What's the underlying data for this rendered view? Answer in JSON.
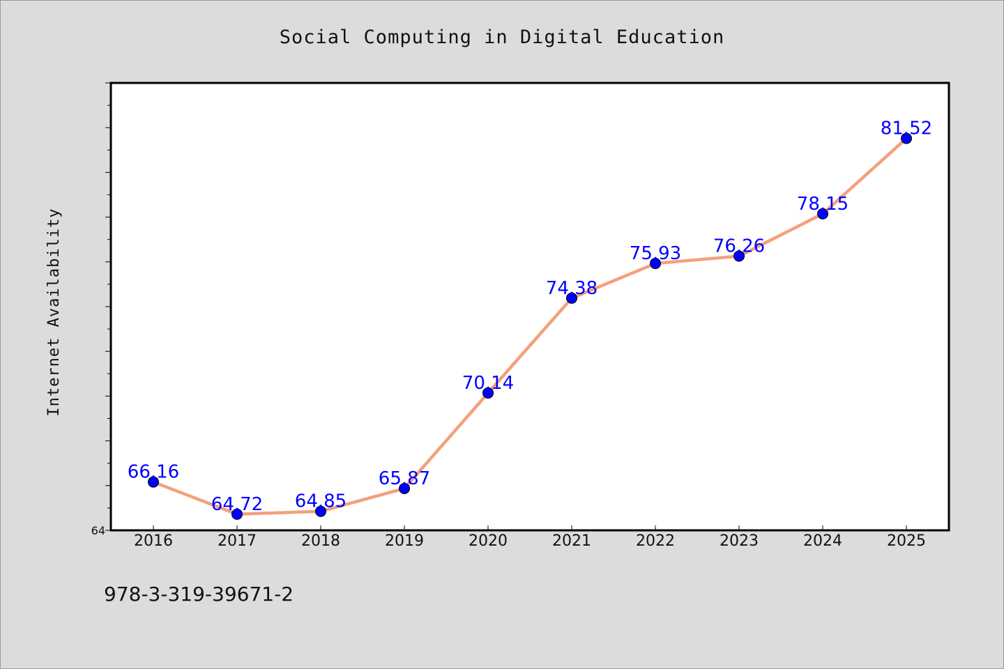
{
  "chart_data": {
    "type": "line",
    "title": "Social Computing in Digital Education",
    "xlabel": "",
    "ylabel": "Internet Availability",
    "categories": [
      "2016",
      "2017",
      "2018",
      "2019",
      "2020",
      "2021",
      "2022",
      "2023",
      "2024",
      "2025"
    ],
    "series": [
      {
        "values": [
          66.16,
          64.72,
          64.85,
          65.87,
          70.14,
          74.38,
          75.93,
          76.26,
          78.15,
          81.52
        ],
        "data_labels": [
          "66.16",
          "64.72",
          "64.85",
          "65.87",
          "70.14",
          "74.38",
          "75.93",
          "76.26",
          "78.15",
          "81.52"
        ],
        "line_color": "#f4a07c",
        "marker_color": "#0000ff"
      }
    ],
    "ylim": [
      64,
      84
    ],
    "y_tick_labels": [
      "64"
    ],
    "grid": false,
    "legend": "none",
    "plot_background": "#ffffff",
    "figure_background": "#dcdcdc"
  },
  "footer": {
    "isbn": "978-3-319-39671-2"
  }
}
